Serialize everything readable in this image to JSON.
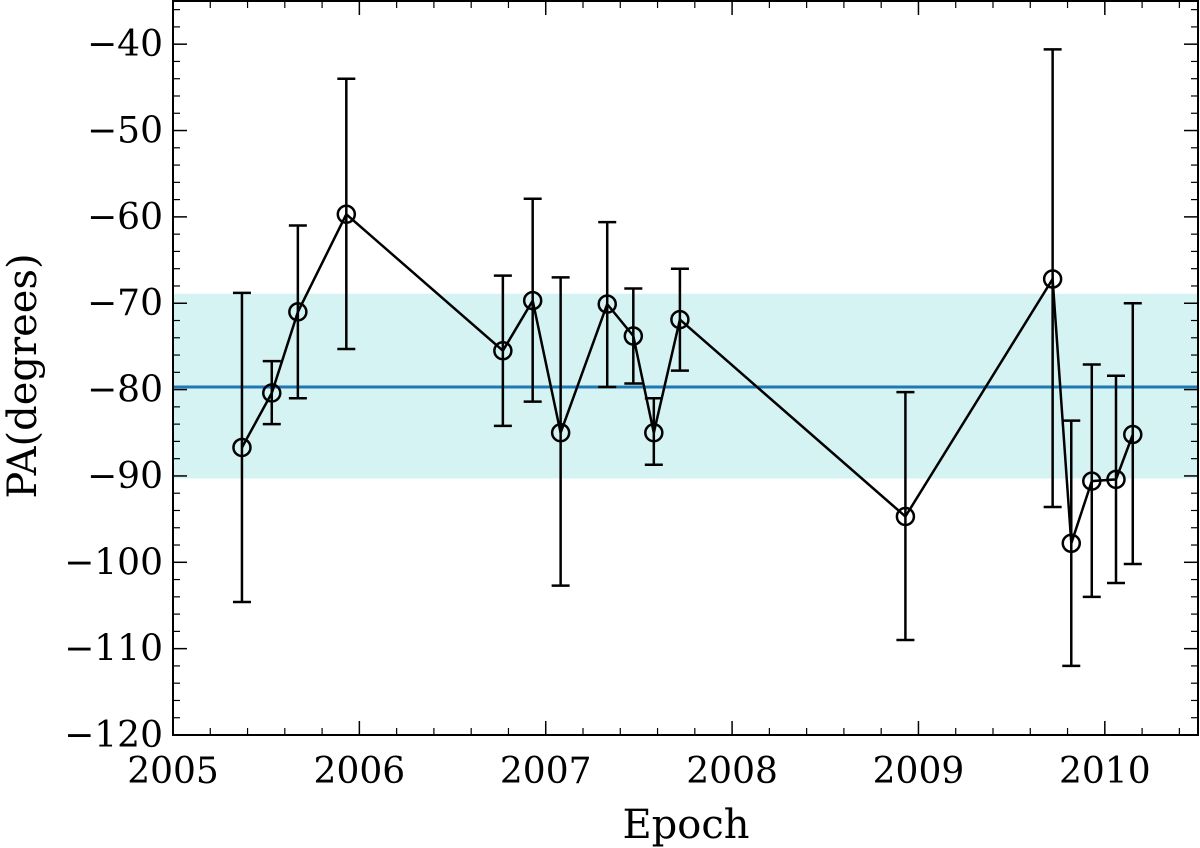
{
  "chart_data": {
    "type": "scatter",
    "xlabel": "Epoch",
    "ylabel": "PA(degrees)",
    "xlim": [
      2005.0,
      2010.5
    ],
    "ylim": [
      -120,
      -35
    ],
    "x_ticks": [
      2005,
      2006,
      2007,
      2008,
      2009,
      2010
    ],
    "y_ticks": [
      -40,
      -50,
      -60,
      -70,
      -80,
      -90,
      -100,
      -110,
      -120
    ],
    "x_tick_labels": [
      "2005",
      "2006",
      "2007",
      "2008",
      "2009",
      "2010"
    ],
    "y_tick_labels": [
      "−40",
      "−50",
      "−60",
      "−70",
      "−80",
      "−90",
      "−100",
      "−110",
      "−120"
    ],
    "mean_line": -79.7,
    "band": [
      -90.3,
      -68.9
    ],
    "colors": {
      "mean_line": "#1f77b4",
      "band": "#d5f3f3",
      "series": "#000000"
    },
    "grid": false,
    "legend": "none",
    "markers": "open-circle",
    "connected": true,
    "points": [
      {
        "x": 2005.37,
        "y": -86.7,
        "lo": -104.6,
        "hi": -68.8
      },
      {
        "x": 2005.53,
        "y": -80.4,
        "lo": -84.0,
        "hi": -76.7
      },
      {
        "x": 2005.67,
        "y": -71.0,
        "lo": -81.0,
        "hi": -61.0
      },
      {
        "x": 2005.93,
        "y": -59.7,
        "lo": -75.3,
        "hi": -44.0
      },
      {
        "x": 2006.77,
        "y": -75.5,
        "lo": -84.2,
        "hi": -66.8
      },
      {
        "x": 2006.93,
        "y": -69.7,
        "lo": -81.4,
        "hi": -57.9
      },
      {
        "x": 2007.08,
        "y": -85.0,
        "lo": -102.7,
        "hi": -67.0
      },
      {
        "x": 2007.33,
        "y": -70.1,
        "lo": -79.7,
        "hi": -60.6
      },
      {
        "x": 2007.47,
        "y": -73.8,
        "lo": -79.3,
        "hi": -68.3
      },
      {
        "x": 2007.58,
        "y": -85.0,
        "lo": -88.7,
        "hi": -81.0
      },
      {
        "x": 2007.72,
        "y": -71.9,
        "lo": -77.8,
        "hi": -66.0
      },
      {
        "x": 2008.93,
        "y": -94.7,
        "lo": -109.0,
        "hi": -80.3
      },
      {
        "x": 2009.72,
        "y": -67.2,
        "lo": -93.6,
        "hi": -40.6
      },
      {
        "x": 2009.82,
        "y": -97.8,
        "lo": -112.0,
        "hi": -83.6
      },
      {
        "x": 2009.93,
        "y": -90.6,
        "lo": -104.0,
        "hi": -77.1
      },
      {
        "x": 2010.06,
        "y": -90.4,
        "lo": -102.4,
        "hi": -78.4
      },
      {
        "x": 2010.15,
        "y": -85.2,
        "lo": -100.2,
        "hi": -70.0
      }
    ]
  }
}
